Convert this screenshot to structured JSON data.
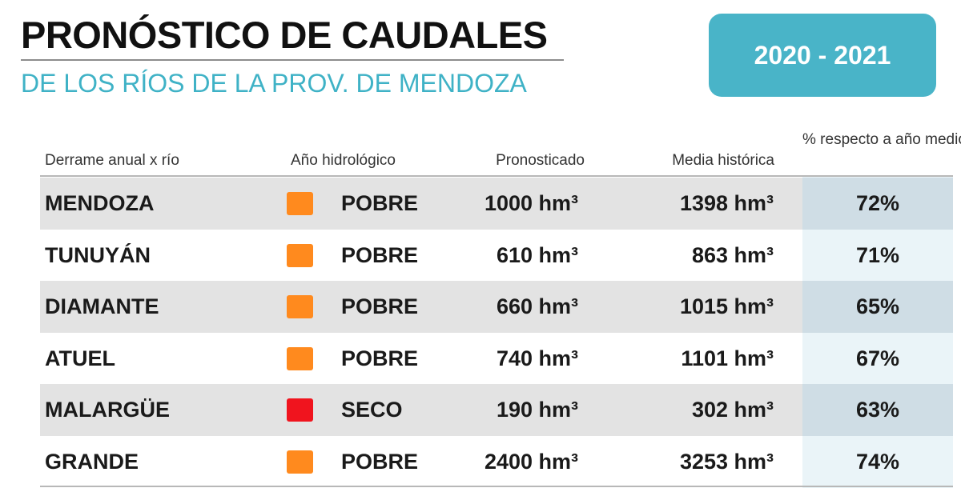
{
  "header": {
    "title": "PRONÓSTICO DE CAUDALES",
    "subtitle": "DE LOS RÍOS DE LA PROV. DE MENDOZA",
    "season": "2020 - 2021"
  },
  "colors": {
    "accent": "#49b4c8",
    "subtitle": "#3fb2c6",
    "pobre": "#ff8a1e",
    "seco": "#f0141e",
    "row_shade": "#e3e3e3",
    "pct_column": "#eaf4f8"
  },
  "chart_data": {
    "type": "table",
    "title": "PRONÓSTICO DE CAUDALES",
    "subtitle": "DE LOS RÍOS DE LA PROV. DE MENDOZA",
    "columns": [
      "Derrame anual x río",
      "Año hidrológico",
      "Pronosticado",
      "Media histórica",
      "% respecto a año medio"
    ],
    "rows": [
      {
        "river": "MENDOZA",
        "status": "POBRE",
        "status_color": "#ff8a1e",
        "forecast": "1000 hm³",
        "mean": "1398  hm³",
        "pct": "72%",
        "forecast_hm3": 1000,
        "mean_hm3": 1398,
        "pct_value": 72
      },
      {
        "river": "TUNUYÁN",
        "status": "POBRE",
        "status_color": "#ff8a1e",
        "forecast": "610 hm³",
        "mean": "863  hm³",
        "pct": "71%",
        "forecast_hm3": 610,
        "mean_hm3": 863,
        "pct_value": 71
      },
      {
        "river": "DIAMANTE",
        "status": "POBRE",
        "status_color": "#ff8a1e",
        "forecast": "660 hm³",
        "mean": "1015  hm³",
        "pct": "65%",
        "forecast_hm3": 660,
        "mean_hm3": 1015,
        "pct_value": 65
      },
      {
        "river": "ATUEL",
        "status": "POBRE",
        "status_color": "#ff8a1e",
        "forecast": "740 hm³",
        "mean": "1101  hm³",
        "pct": "67%",
        "forecast_hm3": 740,
        "mean_hm3": 1101,
        "pct_value": 67
      },
      {
        "river": "MALARGÜE",
        "status": "SECO",
        "status_color": "#f0141e",
        "forecast": "190 hm³",
        "mean": "302  hm³",
        "pct": "63%",
        "forecast_hm3": 190,
        "mean_hm3": 302,
        "pct_value": 63
      },
      {
        "river": "GRANDE",
        "status": "POBRE",
        "status_color": "#ff8a1e",
        "forecast": "2400 hm³",
        "mean": "3253  hm³",
        "pct": "74%",
        "forecast_hm3": 2400,
        "mean_hm3": 3253,
        "pct_value": 74
      }
    ]
  }
}
